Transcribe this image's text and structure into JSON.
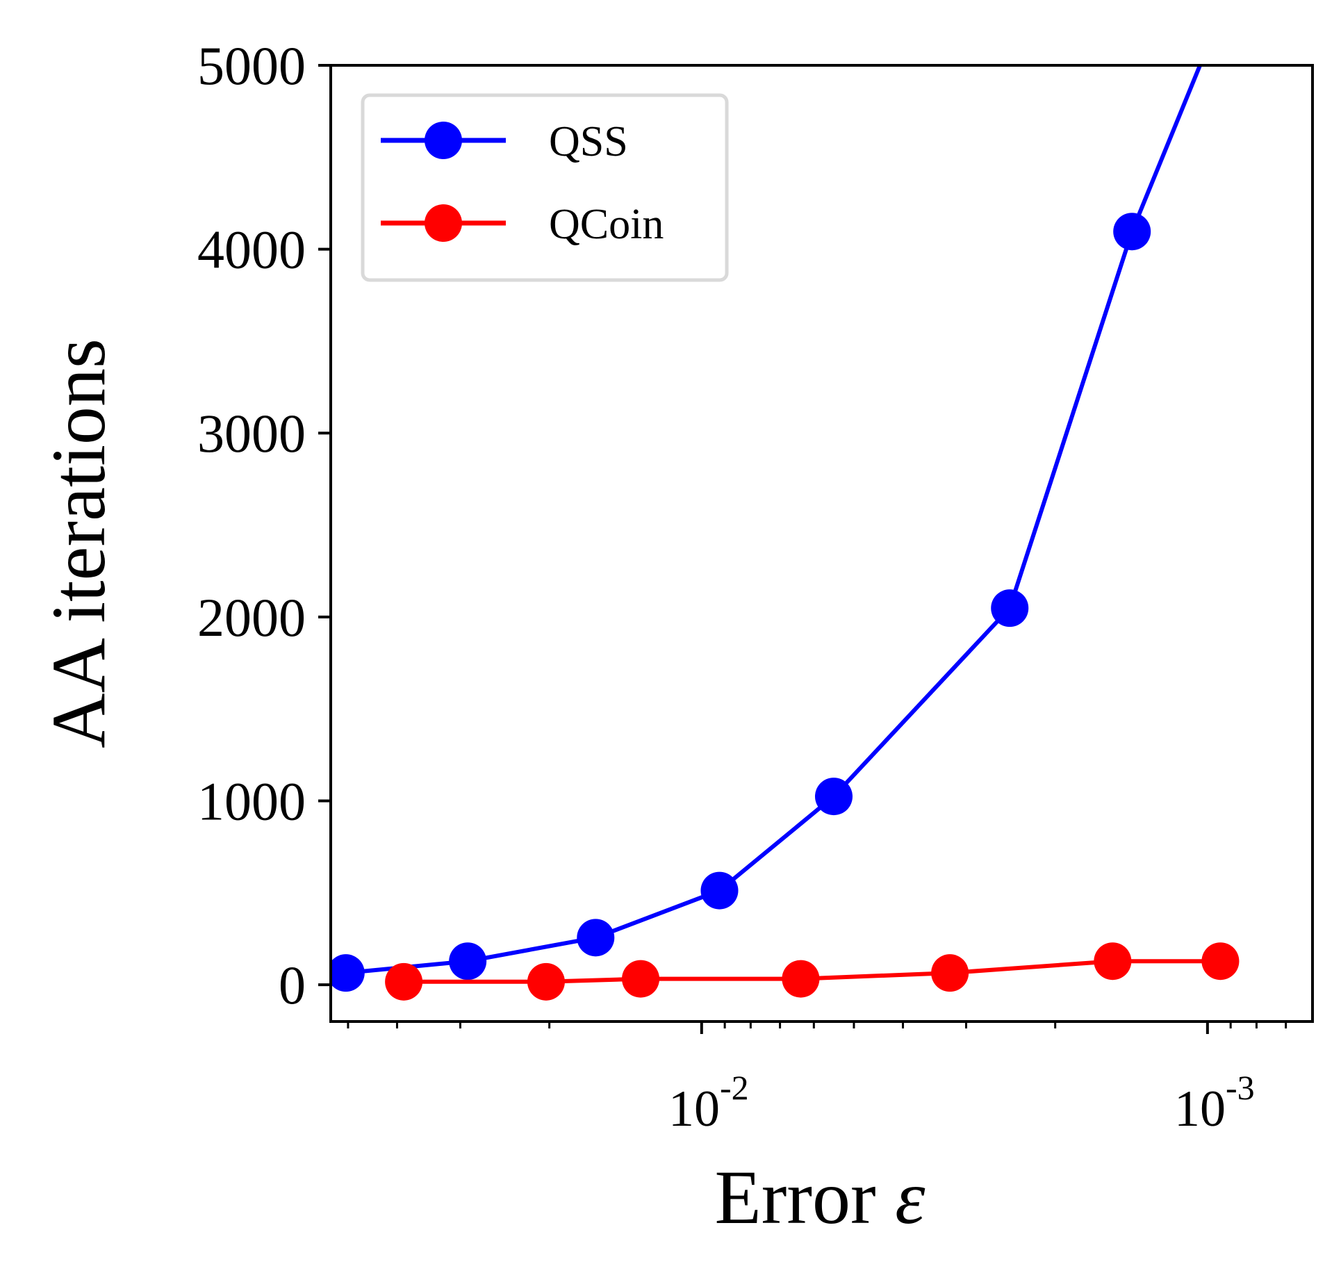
{
  "chart_data": {
    "type": "line",
    "xlabel": "Error",
    "xlabel_symbol": "ε",
    "ylabel": "AA iterations",
    "x_scale": "log",
    "x_direction": "reversed",
    "xlim": [
      0.0541,
      0.00062
    ],
    "ylim": [
      -200,
      5000
    ],
    "grid": false,
    "legend_position": "top-left",
    "x_ticks": [
      {
        "base": "10",
        "exponent": "-2",
        "value": 0.01
      },
      {
        "base": "10",
        "exponent": "-3",
        "value": 0.001
      }
    ],
    "y_ticks": [
      "0",
      "1000",
      "2000",
      "3000",
      "4000",
      "5000"
    ],
    "series": [
      {
        "name": "QSS",
        "color": "#0000ff",
        "marker": "circle",
        "points": [
          {
            "x": 0.0505,
            "y": 64
          },
          {
            "x": 0.029,
            "y": 128
          },
          {
            "x": 0.0162,
            "y": 256
          },
          {
            "x": 0.00922,
            "y": 512
          },
          {
            "x": 0.00548,
            "y": 1024
          },
          {
            "x": 0.00246,
            "y": 2048
          },
          {
            "x": 0.00141,
            "y": 4096
          },
          {
            "x": 0.001,
            "y": 5100
          }
        ]
      },
      {
        "name": "QCoin",
        "color": "#ff0000",
        "marker": "circle",
        "points": [
          {
            "x": 0.0388,
            "y": 16
          },
          {
            "x": 0.0203,
            "y": 16
          },
          {
            "x": 0.0132,
            "y": 32
          },
          {
            "x": 0.00637,
            "y": 32
          },
          {
            "x": 0.00323,
            "y": 64
          },
          {
            "x": 0.00154,
            "y": 128
          },
          {
            "x": 0.000943,
            "y": 128
          }
        ]
      }
    ]
  }
}
